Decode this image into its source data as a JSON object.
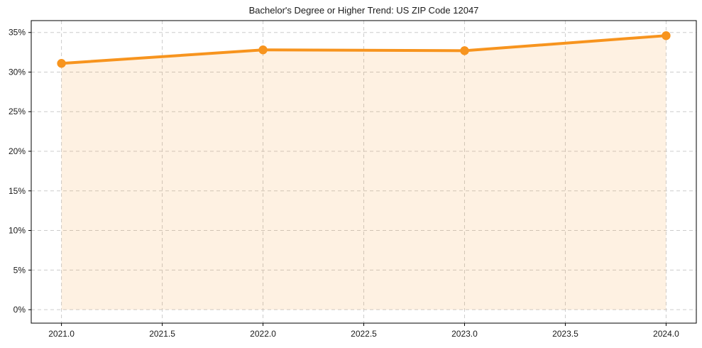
{
  "figure": {
    "title": "Bachelor's Degree or Higher Trend: US ZIP Code 12047",
    "background_color": "#ffffff"
  },
  "chart_data": {
    "type": "area",
    "title": "Bachelor's Degree or Higher Trend: US ZIP Code 12047",
    "x": [
      2021.0,
      2022.0,
      2023.0,
      2024.0
    ],
    "values": [
      31.1,
      32.8,
      32.7,
      34.6
    ],
    "value_unit": "%",
    "series_name": "Bachelor's Degree or Higher",
    "xlabel": "",
    "ylabel": "",
    "xlim": [
      2020.85,
      2024.15
    ],
    "ylim": [
      -1.7,
      36.5
    ],
    "x_ticks": [
      2021.0,
      2021.5,
      2022.0,
      2022.5,
      2023.0,
      2023.5,
      2024.0
    ],
    "x_tick_labels": [
      "2021.0",
      "2021.5",
      "2022.0",
      "2022.5",
      "2023.0",
      "2023.5",
      "2024.0"
    ],
    "y_ticks": [
      0,
      5,
      10,
      15,
      20,
      25,
      30,
      35
    ],
    "y_tick_labels": [
      "0%",
      "5%",
      "10%",
      "15%",
      "20%",
      "25%",
      "30%",
      "35%"
    ],
    "grid": true,
    "grid_style": "dashed",
    "legend_position": "none",
    "marker": "circle",
    "colors": {
      "line": "#F7941E",
      "marker": "#F7941E",
      "fill": "rgba(247, 148, 30, 0.13)",
      "grid": "#cccccc",
      "axis_frame": "#000000",
      "tick_text": "#1a1a1a"
    }
  }
}
